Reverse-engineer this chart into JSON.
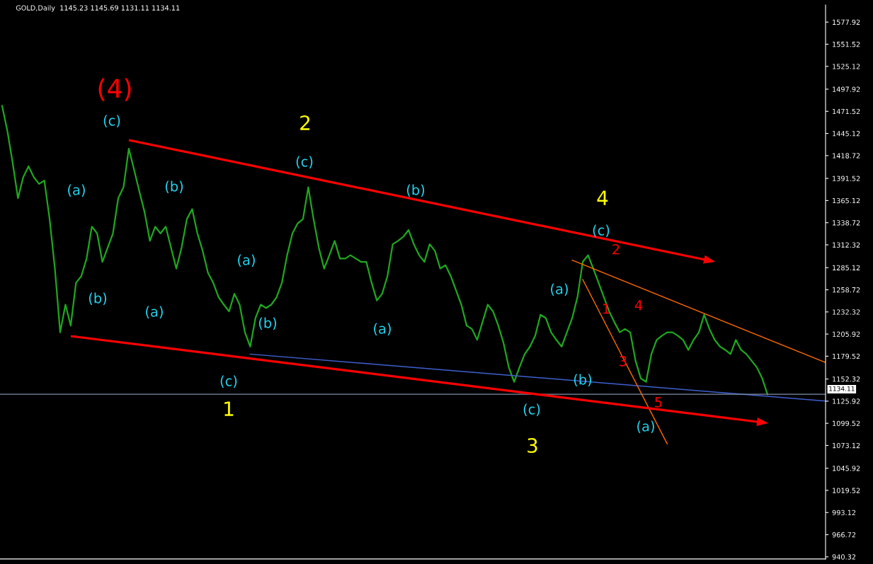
{
  "chart_data": {
    "type": "line",
    "title": "GOLD,Daily",
    "subtitle": "1145.23 1145.69 1131.11 1134.11",
    "categories": [
      null,
      null,
      null,
      null,
      null,
      null,
      null,
      null,
      null,
      null,
      null,
      null,
      null,
      null,
      null,
      null,
      null,
      null,
      null,
      null,
      null,
      null,
      null,
      null,
      null,
      null,
      null,
      null,
      null,
      null,
      null,
      null,
      null,
      null,
      null,
      null,
      null,
      null,
      null,
      null,
      null,
      null,
      null,
      null,
      null,
      null,
      null,
      null,
      null,
      null,
      null,
      null,
      null,
      null,
      null,
      null,
      null,
      null,
      null,
      null,
      null,
      null,
      null,
      null,
      null,
      null,
      null,
      null,
      null,
      null,
      null,
      null,
      null,
      null,
      null,
      null,
      null,
      null,
      null,
      null,
      null,
      null,
      null,
      null,
      null,
      null,
      null,
      null,
      null,
      null,
      null,
      null,
      null,
      null,
      null,
      null,
      null,
      null,
      null,
      null,
      null,
      null,
      null,
      null,
      null,
      null,
      null,
      null,
      null,
      null,
      null,
      null,
      null,
      null,
      null,
      null,
      null,
      null,
      null,
      null,
      null,
      null,
      null,
      null,
      null,
      null,
      null,
      null,
      null,
      null,
      null,
      null,
      null,
      null,
      null,
      null,
      null,
      null,
      null,
      null,
      null,
      null,
      null,
      null,
      null,
      null,
      null,
      null,
      null,
      null,
      null,
      null,
      null,
      null,
      null,
      null,
      null
    ],
    "ylim": [
      937.8,
      1598.2
    ],
    "yticks": [
      940.32,
      966.72,
      993.12,
      1019.52,
      1045.92,
      1073.12,
      1099.52,
      1125.92,
      1152.32,
      1179.52,
      1205.92,
      1232.32,
      1258.72,
      1285.12,
      1312.32,
      1338.72,
      1365.12,
      1391.52,
      1418.72,
      1445.12,
      1471.52,
      1497.92,
      1525.12,
      1551.52,
      1577.92
    ],
    "tick_labels": "y",
    "grid": false,
    "legend": false,
    "series": [
      {
        "color": "#1fa81f",
        "line_style": "solid",
        "values": [
          1478,
          1448,
          1410,
          1368,
          1393,
          1406,
          1393,
          1385,
          1389,
          1343,
          1284,
          1208,
          1241,
          1216,
          1267,
          1275,
          1296,
          1334,
          1326,
          1292,
          1309,
          1326,
          1368,
          1381,
          1427,
          1402,
          1376,
          1351,
          1317,
          1334,
          1326,
          1334,
          1309,
          1284,
          1309,
          1343,
          1355,
          1326,
          1305,
          1279,
          1267,
          1250,
          1241,
          1233,
          1254,
          1241,
          1208,
          1191,
          1225,
          1241,
          1237,
          1241,
          1250,
          1267,
          1300,
          1326,
          1338,
          1343,
          1381,
          1343,
          1309,
          1284,
          1300,
          1317,
          1296,
          1296,
          1300,
          1296,
          1292,
          1292,
          1267,
          1246,
          1254,
          1275,
          1313,
          1317,
          1322,
          1330,
          1313,
          1300,
          1292,
          1313,
          1305,
          1284,
          1288,
          1275,
          1258,
          1241,
          1216,
          1212,
          1199,
          1220,
          1241,
          1233,
          1216,
          1195,
          1166,
          1149,
          1166,
          1182,
          1191,
          1204,
          1229,
          1225,
          1208,
          1199,
          1191,
          1208,
          1225,
          1250,
          1292,
          1300,
          1284,
          1267,
          1250,
          1233,
          1220,
          1208,
          1212,
          1208,
          1174,
          1153,
          1149,
          1182,
          1199,
          1204,
          1208,
          1208,
          1204,
          1199,
          1187,
          1199,
          1208,
          1229,
          1212,
          1199,
          1191,
          1187,
          1182,
          1199,
          1187,
          1182,
          1174,
          1166,
          1153,
          1134.11,
          null,
          null,
          null,
          null,
          null,
          null,
          null,
          null,
          null,
          null,
          null
        ]
      },
      {
        "color": "#4060d0",
        "line_style": "solid",
        "values": [
          null,
          null,
          null,
          null,
          null,
          null,
          null,
          null,
          null,
          null,
          null,
          null,
          null,
          null,
          null,
          null,
          null,
          null,
          null,
          null,
          null,
          null,
          null,
          null,
          null,
          null,
          null,
          null,
          null,
          null,
          null,
          null,
          null,
          null,
          null,
          null,
          null,
          null,
          null,
          null,
          null,
          null,
          null,
          null,
          null,
          null,
          null,
          1182,
          null,
          null,
          null,
          null,
          null,
          null,
          null,
          null,
          null,
          null,
          null,
          null,
          null,
          null,
          null,
          null,
          null,
          null,
          null,
          null,
          null,
          null,
          null,
          null,
          null,
          null,
          null,
          null,
          null,
          null,
          null,
          null,
          null,
          null,
          null,
          null,
          null,
          null,
          null,
          null,
          null,
          null,
          null,
          null,
          null,
          null,
          null,
          null,
          null,
          null,
          null,
          null,
          null,
          null,
          null,
          null,
          null,
          null,
          null,
          null,
          null,
          null,
          null,
          null,
          null,
          null,
          null,
          null,
          null,
          null,
          null,
          null,
          null,
          null,
          null,
          null,
          null,
          null,
          null,
          null,
          null,
          null,
          null,
          null,
          null,
          null,
          null,
          null,
          null,
          null,
          null,
          null,
          null,
          null,
          null,
          null,
          null,
          null,
          null,
          null,
          null,
          null,
          null,
          null,
          null,
          null,
          null,
          null,
          1126
        ]
      },
      {
        "color": "#ff6a00",
        "line_style": "solid",
        "values": [
          null,
          null,
          null,
          null,
          null,
          null,
          null,
          null,
          null,
          null,
          null,
          null,
          null,
          null,
          null,
          null,
          null,
          null,
          null,
          null,
          null,
          null,
          null,
          null,
          null,
          null,
          null,
          null,
          null,
          null,
          null,
          null,
          null,
          null,
          null,
          null,
          null,
          null,
          null,
          null,
          null,
          null,
          null,
          null,
          null,
          null,
          null,
          null,
          null,
          null,
          null,
          null,
          null,
          null,
          null,
          null,
          null,
          null,
          null,
          null,
          null,
          null,
          null,
          null,
          null,
          null,
          null,
          null,
          null,
          null,
          null,
          null,
          null,
          null,
          null,
          null,
          null,
          null,
          null,
          null,
          null,
          null,
          null,
          null,
          null,
          null,
          null,
          null,
          null,
          null,
          null,
          null,
          null,
          null,
          null,
          null,
          null,
          null,
          null,
          null,
          null,
          null,
          null,
          null,
          null,
          null,
          null,
          null,
          1294,
          null,
          null,
          null,
          null,
          null,
          null,
          null,
          null,
          null,
          null,
          null,
          null,
          null,
          null,
          null,
          null,
          null,
          null,
          null,
          null,
          null,
          null,
          null,
          null,
          null,
          null,
          null,
          null,
          null,
          null,
          null,
          null,
          null,
          null,
          null,
          null,
          null,
          null,
          null,
          null,
          null,
          null,
          null,
          null,
          null,
          null,
          null,
          1172
        ]
      },
      {
        "color": "#ff6a00",
        "line_style": "solid",
        "values": [
          null,
          null,
          null,
          null,
          null,
          null,
          null,
          null,
          null,
          null,
          null,
          null,
          null,
          null,
          null,
          null,
          null,
          null,
          null,
          null,
          null,
          null,
          null,
          null,
          null,
          null,
          null,
          null,
          null,
          null,
          null,
          null,
          null,
          null,
          null,
          null,
          null,
          null,
          null,
          null,
          null,
          null,
          null,
          null,
          null,
          null,
          null,
          null,
          null,
          null,
          null,
          null,
          null,
          null,
          null,
          null,
          null,
          null,
          null,
          null,
          null,
          null,
          null,
          null,
          null,
          null,
          null,
          null,
          null,
          null,
          null,
          null,
          null,
          null,
          null,
          null,
          null,
          null,
          null,
          null,
          null,
          null,
          null,
          null,
          null,
          null,
          null,
          null,
          null,
          null,
          null,
          null,
          null,
          null,
          null,
          null,
          null,
          null,
          null,
          null,
          null,
          null,
          null,
          null,
          null,
          null,
          null,
          null,
          null,
          null,
          1271,
          null,
          null,
          null,
          null,
          null,
          null,
          null,
          null,
          null,
          null,
          null,
          null,
          null,
          null,
          null,
          1075,
          null,
          null,
          null,
          null,
          null,
          null,
          null,
          null,
          null,
          null,
          null,
          null,
          null,
          null,
          null,
          null,
          null,
          null,
          null,
          null,
          null,
          null,
          null,
          null,
          null,
          null,
          null,
          null,
          null,
          null
        ]
      }
    ],
    "ref_lines": [
      {
        "axis": "y",
        "value": 1134.11,
        "label": "1134.11",
        "color": "#8090a8"
      }
    ],
    "annotations": [
      "(4)",
      "(c)",
      "2",
      "(c)",
      "(a)",
      "(b)",
      "(b)",
      "4",
      "(c)",
      "2",
      "(b)",
      "(a)",
      "(a)",
      "(b)",
      "(a)",
      "(a)",
      "1",
      "4",
      "3",
      "(b)",
      "(c)",
      "1",
      "(c)",
      "5",
      "(a)",
      "3"
    ]
  }
}
